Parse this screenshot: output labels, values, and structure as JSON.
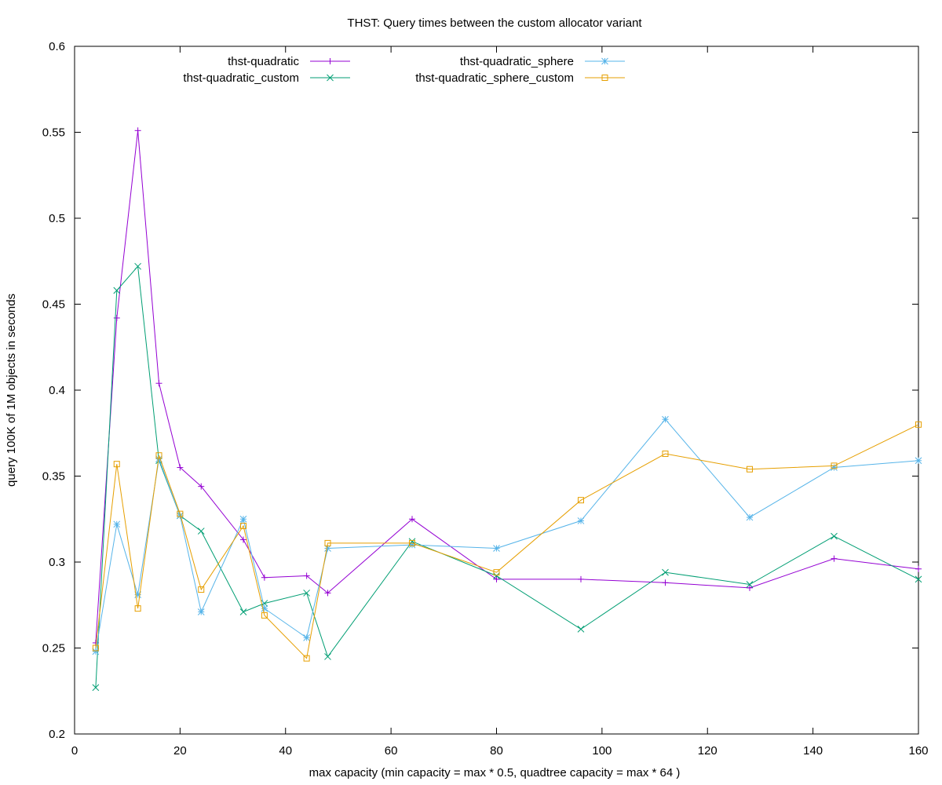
{
  "chart_data": {
    "type": "line",
    "title": "THST: Query times between the custom allocator variant",
    "xlabel": "max capacity (min capacity = max * 0.5, quadtree capacity = max * 64 )",
    "ylabel": "query 100K of 1M objects in seconds",
    "xlim": [
      0,
      160
    ],
    "ylim": [
      0.2,
      0.6
    ],
    "xticks": [
      0,
      20,
      40,
      60,
      80,
      100,
      120,
      140,
      160
    ],
    "yticks": [
      0.2,
      0.25,
      0.3,
      0.35,
      0.4,
      0.45,
      0.5,
      0.55,
      0.6
    ],
    "ytick_labels": [
      "0.2",
      "0.25",
      "0.3",
      "0.35",
      "0.4",
      "0.45",
      "0.5",
      "0.55",
      "0.6"
    ],
    "grid": false,
    "legend_position": "top",
    "x": [
      4,
      8,
      12,
      16,
      20,
      24,
      32,
      36,
      44,
      48,
      64,
      80,
      96,
      112,
      128,
      144,
      160
    ],
    "series": [
      {
        "name": "thst-quadratic",
        "color": "#9400d3",
        "marker": "plus",
        "values": [
          0.253,
          0.442,
          0.551,
          0.404,
          0.355,
          0.344,
          0.313,
          0.291,
          0.292,
          0.282,
          0.325,
          0.29,
          0.29,
          0.288,
          0.285,
          0.302,
          0.296
        ]
      },
      {
        "name": "thst-quadratic_custom",
        "color": "#009e73",
        "marker": "cross",
        "values": [
          0.227,
          0.458,
          0.472,
          0.359,
          0.327,
          0.318,
          0.271,
          0.276,
          0.282,
          0.245,
          0.312,
          0.292,
          0.261,
          0.294,
          0.287,
          0.315,
          0.29
        ]
      },
      {
        "name": "thst-quadratic_sphere",
        "color": "#56b4e9",
        "marker": "star",
        "values": [
          0.248,
          0.322,
          0.281,
          0.36,
          0.327,
          0.271,
          0.325,
          0.273,
          0.256,
          0.308,
          0.31,
          0.308,
          0.324,
          0.383,
          0.326,
          0.355,
          0.359
        ]
      },
      {
        "name": "thst-quadratic_sphere_custom",
        "color": "#e69f00",
        "marker": "square",
        "values": [
          0.25,
          0.357,
          0.273,
          0.362,
          0.328,
          0.284,
          0.321,
          0.269,
          0.244,
          0.311,
          0.311,
          0.294,
          0.336,
          0.363,
          0.354,
          0.356,
          0.38
        ]
      }
    ]
  }
}
